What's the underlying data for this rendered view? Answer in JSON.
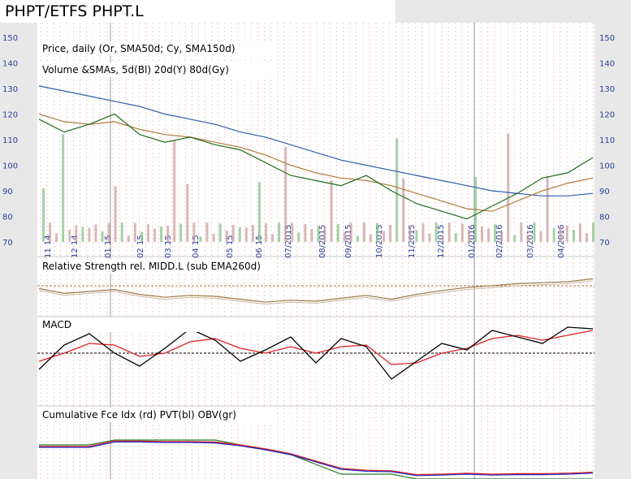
{
  "title": "PHPT/ETFS PHPT.L",
  "panels": {
    "price_label": "Price, daily (Or, SMA50d; Cy, SMA150d)",
    "volume_label": "Volume &SMAs, 5d(Bl) 20d(Y) 80d(Gy)",
    "rs_label": "Relative Strength rel. MIDD.L (sub EMA260d)",
    "macd_label": "MACD",
    "flow_label": "Cumulative Fce Idx (rd) PVT(bl) OBV(gr)"
  },
  "chart_data": [
    {
      "type": "line",
      "name": "price",
      "y_ticks": [
        "150",
        "140",
        "130",
        "120",
        "110",
        "100",
        "90",
        "80",
        "70"
      ],
      "ylim": [
        70,
        150
      ],
      "x_ticks": [
        "11 14",
        "12 14",
        "01 15",
        "02 15",
        "03 15",
        "04 15",
        "05 15",
        "06 15",
        "07/2015",
        "08/2015",
        "09/2015",
        "10/2015",
        "11/2015",
        "12/2015",
        "01/2016",
        "02/2016",
        "03/2016",
        "04/2016"
      ],
      "x_index": [
        0,
        1,
        2,
        3,
        4,
        5,
        6,
        7,
        8,
        9,
        10,
        11,
        12,
        13,
        14,
        15,
        16,
        17,
        18,
        19,
        20,
        21,
        22
      ],
      "close": [
        118,
        113,
        116,
        120,
        112,
        109,
        111,
        108,
        106,
        101,
        96,
        94,
        92,
        96,
        90,
        85,
        82,
        79,
        84,
        89,
        95,
        97,
        103
      ],
      "sma50": [
        120,
        117,
        116,
        117,
        114,
        112,
        111,
        109,
        107,
        104,
        100,
        97,
        95,
        94,
        92,
        89,
        86,
        83,
        82,
        86,
        90,
        93,
        95
      ],
      "sma150": [
        131,
        129,
        127,
        125,
        123,
        120,
        118,
        116,
        113,
        111,
        108,
        105,
        102,
        100,
        98,
        96,
        94,
        92,
        90,
        89,
        88,
        88,
        89
      ]
    },
    {
      "type": "line",
      "name": "macd",
      "macd": [
        -1,
        0.5,
        1.2,
        0,
        -0.8,
        0.3,
        1.5,
        0.8,
        -0.5,
        0.2,
        1,
        -0.6,
        0.9,
        0.4,
        -1.6,
        -0.5,
        0.6,
        0.2,
        1.4,
        1,
        0.6,
        1.6,
        1.5
      ],
      "signal": [
        -0.5,
        0,
        0.6,
        0.5,
        -0.2,
        0,
        0.7,
        0.9,
        0.3,
        0,
        0.4,
        0,
        0.4,
        0.5,
        -0.7,
        -0.6,
        0,
        0.3,
        0.9,
        1.1,
        0.8,
        1.1,
        1.4
      ]
    }
  ]
}
